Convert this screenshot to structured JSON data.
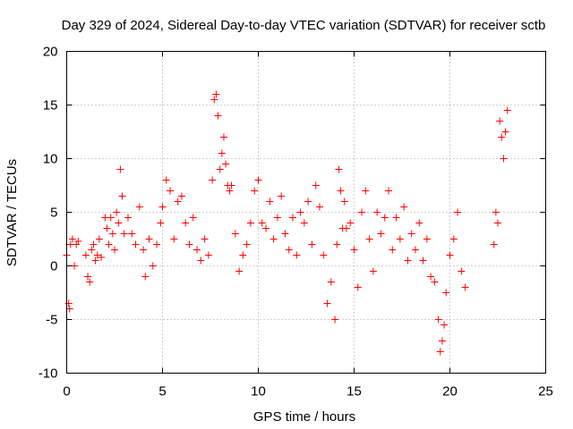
{
  "chart_data": {
    "type": "scatter",
    "title": "Day 329 of 2024, Sidereal Day-to-day VTEC variation (SDTVAR) for receiver sctb",
    "xlabel": "GPS time / hours",
    "ylabel": "SDTVAR / TECUs",
    "xlim": [
      0,
      25
    ],
    "ylim": [
      -10,
      20
    ],
    "xticks": [
      0,
      5,
      10,
      15,
      20,
      25
    ],
    "yticks": [
      -10,
      -5,
      0,
      5,
      10,
      15,
      20
    ],
    "xtick_labels": [
      "0",
      "5",
      "10",
      "15",
      "20",
      "25"
    ],
    "ytick_labels": [
      "-10",
      "-5",
      "0",
      "5",
      "10",
      "15",
      "20"
    ],
    "grid": true,
    "marker": "+",
    "color": "#ff0000",
    "series": [
      {
        "name": "SDTVAR",
        "x": [
          0.0,
          0.1,
          0.15,
          0.2,
          0.3,
          0.4,
          0.5,
          0.6,
          1.0,
          1.1,
          1.2,
          1.3,
          1.4,
          1.5,
          1.6,
          1.7,
          1.8,
          2.0,
          2.1,
          2.2,
          2.3,
          2.4,
          2.5,
          2.6,
          2.7,
          2.8,
          2.9,
          3.0,
          3.2,
          3.4,
          3.6,
          3.8,
          4.0,
          4.1,
          4.3,
          4.5,
          4.7,
          4.9,
          5.0,
          5.2,
          5.4,
          5.6,
          5.8,
          6.0,
          6.2,
          6.4,
          6.6,
          6.8,
          7.0,
          7.2,
          7.4,
          7.6,
          7.7,
          7.8,
          7.9,
          8.0,
          8.1,
          8.2,
          8.3,
          8.4,
          8.5,
          8.6,
          8.8,
          9.0,
          9.2,
          9.4,
          9.6,
          9.8,
          10.0,
          10.2,
          10.4,
          10.6,
          10.8,
          11.0,
          11.2,
          11.4,
          11.6,
          11.8,
          12.0,
          12.2,
          12.4,
          12.6,
          12.8,
          13.0,
          13.2,
          13.4,
          13.6,
          13.8,
          14.0,
          14.1,
          14.2,
          14.3,
          14.4,
          14.5,
          14.6,
          14.8,
          15.0,
          15.2,
          15.4,
          15.6,
          15.8,
          16.0,
          16.2,
          16.4,
          16.6,
          16.8,
          17.0,
          17.2,
          17.4,
          17.6,
          17.8,
          18.0,
          18.2,
          18.4,
          18.6,
          18.8,
          19.0,
          19.2,
          19.4,
          19.5,
          19.6,
          19.7,
          19.8,
          20.0,
          20.2,
          20.4,
          20.6,
          20.8,
          22.3,
          22.4,
          22.5,
          22.6,
          22.7,
          22.8,
          22.9,
          23.0
        ],
        "y": [
          1.0,
          -3.5,
          -4.0,
          2.0,
          2.5,
          0.0,
          2.0,
          2.3,
          1.0,
          -1.0,
          -1.5,
          1.5,
          2.0,
          0.5,
          1.0,
          2.5,
          0.8,
          4.5,
          3.5,
          2.0,
          4.5,
          3.0,
          1.5,
          5.0,
          4.0,
          9.0,
          6.5,
          3.0,
          4.5,
          3.0,
          2.0,
          5.5,
          1.5,
          -1.0,
          2.5,
          0.0,
          2.0,
          4.0,
          5.5,
          8.0,
          7.0,
          2.5,
          6.0,
          6.5,
          4.0,
          2.0,
          4.5,
          1.5,
          0.5,
          2.5,
          1.0,
          8.0,
          15.5,
          16.0,
          14.0,
          9.0,
          10.5,
          12.0,
          9.5,
          7.5,
          7.0,
          7.5,
          3.0,
          -0.5,
          1.0,
          2.0,
          4.0,
          7.0,
          8.0,
          4.0,
          3.5,
          6.0,
          2.5,
          4.5,
          6.5,
          3.0,
          1.5,
          4.5,
          1.0,
          5.0,
          4.0,
          6.0,
          2.0,
          7.5,
          5.5,
          1.0,
          -3.5,
          -1.5,
          -5.0,
          2.0,
          9.0,
          7.0,
          3.5,
          6.0,
          3.5,
          4.0,
          1.5,
          -2.0,
          5.0,
          7.0,
          2.5,
          -0.5,
          5.0,
          3.0,
          4.5,
          7.0,
          1.5,
          4.5,
          2.5,
          5.5,
          0.5,
          3.0,
          1.5,
          4.0,
          0.5,
          2.5,
          -1.0,
          -1.5,
          -5.0,
          -8.0,
          -7.0,
          -5.5,
          -2.5,
          1.0,
          2.5,
          5.0,
          -0.5,
          -2.0,
          2.0,
          5.0,
          4.0,
          13.5,
          12.0,
          10.0,
          12.5,
          14.5
        ]
      }
    ]
  }
}
